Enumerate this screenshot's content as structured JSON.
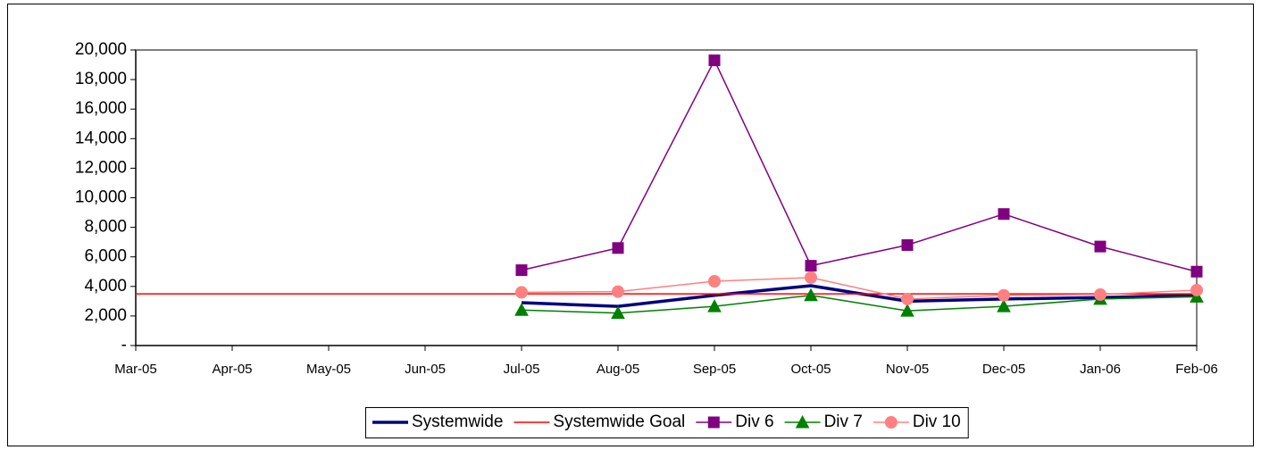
{
  "chart_data": {
    "type": "line",
    "categories": [
      "Mar-05",
      "Apr-05",
      "May-05",
      "Jun-05",
      "Jul-05",
      "Aug-05",
      "Sep-05",
      "Oct-05",
      "Nov-05",
      "Dec-05",
      "Jan-06",
      "Feb-06"
    ],
    "series": [
      {
        "name": "Systemwide",
        "color": "#000080",
        "values": [
          null,
          null,
          null,
          null,
          2900,
          2650,
          3400,
          4050,
          3000,
          3150,
          3250,
          3400
        ]
      },
      {
        "name": "Systemwide Goal",
        "color": "#ff0000",
        "values": [
          3500,
          3500,
          3500,
          3500,
          3500,
          3500,
          3500,
          3500,
          3500,
          3500,
          3500,
          3500
        ]
      },
      {
        "name": "Div 6",
        "color": "#800080",
        "marker": "square",
        "values": [
          null,
          null,
          null,
          null,
          5100,
          6600,
          19300,
          5400,
          6800,
          8900,
          6700,
          5000
        ]
      },
      {
        "name": "Div 7",
        "color": "#008000",
        "marker": "triangle",
        "values": [
          null,
          null,
          null,
          null,
          2400,
          2200,
          2650,
          3400,
          2350,
          2650,
          3150,
          3300
        ]
      },
      {
        "name": "Div 10",
        "color": "#ff8080",
        "marker": "circle",
        "values": [
          null,
          null,
          null,
          null,
          3600,
          3650,
          4350,
          4600,
          3150,
          3400,
          3450,
          3750
        ]
      }
    ],
    "ylim": [
      0,
      20000
    ],
    "yticks": [
      {
        "value": 0,
        "label": "-"
      },
      {
        "value": 2000,
        "label": "2,000"
      },
      {
        "value": 4000,
        "label": "4,000"
      },
      {
        "value": 6000,
        "label": "6,000"
      },
      {
        "value": 8000,
        "label": "8,000"
      },
      {
        "value": 10000,
        "label": "10,000"
      },
      {
        "value": 12000,
        "label": "12,000"
      },
      {
        "value": 14000,
        "label": "14,000"
      },
      {
        "value": 16000,
        "label": "16,000"
      },
      {
        "value": 18000,
        "label": "18,000"
      },
      {
        "value": 20000,
        "label": "20,000"
      }
    ],
    "grid": false,
    "legend": "bottom"
  }
}
